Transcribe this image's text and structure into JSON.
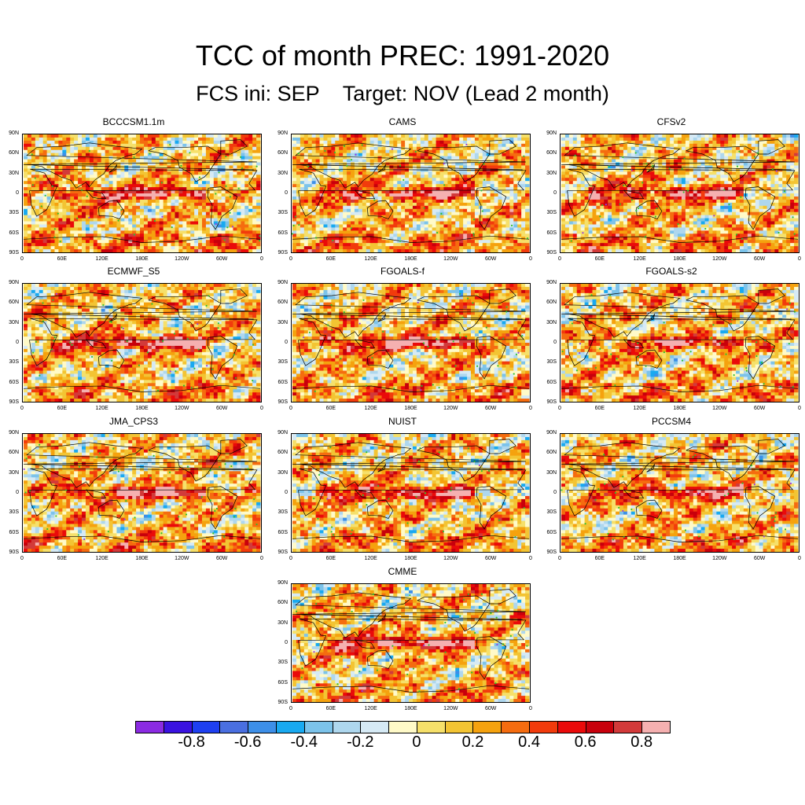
{
  "title": "TCC of month PREC: 1991-2020",
  "subtitle": "FCS ini: SEP    Target: NOV (Lead 2 month)",
  "axis_labels": {
    "lat": [
      "90N",
      "60N",
      "30N",
      "0",
      "30S",
      "60S",
      "90S"
    ],
    "lon": [
      "0",
      "60E",
      "120E",
      "180E",
      "120W",
      "60W",
      "0"
    ]
  },
  "panels": [
    {
      "name": "BCCCSM1.1m",
      "seed": 11,
      "strength": 0.95
    },
    {
      "name": "CAMS",
      "seed": 23,
      "strength": 0.95
    },
    {
      "name": "CFSv2",
      "seed": 37,
      "strength": 0.95
    },
    {
      "name": "ECMWF_S5",
      "seed": 41,
      "strength": 1.15
    },
    {
      "name": "FGOALS-f",
      "seed": 53,
      "strength": 1.05
    },
    {
      "name": "FGOALS-s2",
      "seed": 67,
      "strength": 0.8
    },
    {
      "name": "JMA_CPS3",
      "seed": 71,
      "strength": 1.1
    },
    {
      "name": "NUIST",
      "seed": 83,
      "strength": 1.0
    },
    {
      "name": "PCCSM4",
      "seed": 97,
      "strength": 0.85
    },
    {
      "name": "CMME",
      "seed": 101,
      "strength": 1.1
    }
  ],
  "colorbar": {
    "colors": [
      "#8b2be2",
      "#3a12e0",
      "#1e3ff0",
      "#4a6fe0",
      "#3d8fe8",
      "#19a9f0",
      "#7cc3ea",
      "#aed7ee",
      "#d6eaf5",
      "#fffac8",
      "#f6e06a",
      "#f3c433",
      "#f5a20e",
      "#f56c0f",
      "#f23b0c",
      "#ea0a0a",
      "#c8000c",
      "#d23a3a",
      "#f5b0b0"
    ],
    "labels": [
      "-0.8",
      "-0.6",
      "-0.4",
      "-0.2",
      "0",
      "0.2",
      "0.4",
      "0.6",
      "0.8"
    ]
  }
}
